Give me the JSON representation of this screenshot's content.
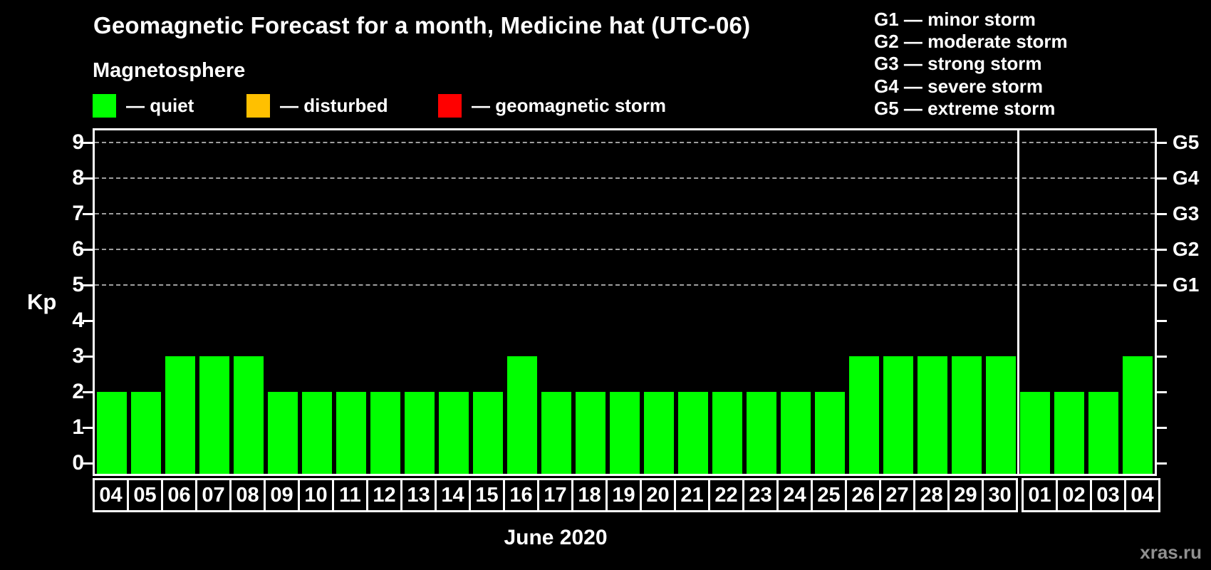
{
  "header": {
    "title": "Geomagnetic Forecast for a month, Medicine hat (UTC-06)",
    "subtitle": "Magnetosphere"
  },
  "legend": {
    "items": [
      {
        "name": "quiet",
        "label": "— quiet",
        "color": "#00ff00"
      },
      {
        "name": "disturbed",
        "label": "— disturbed",
        "color": "#ffc000"
      },
      {
        "name": "geomagnetic-storm",
        "label": "— geomagnetic storm",
        "color": "#ff0000"
      }
    ]
  },
  "storm_scale": [
    "G1 — minor storm",
    "G2 — moderate storm",
    "G3 — strong storm",
    "G4 — severe storm",
    "G5 — extreme storm"
  ],
  "axes": {
    "y_label": "Kp",
    "x_label": "June 2020",
    "kp_ticks": [
      9,
      8,
      7,
      6,
      5,
      4,
      3,
      2,
      1,
      0
    ],
    "g_labels": [
      {
        "kp": 9,
        "label": "G5"
      },
      {
        "kp": 8,
        "label": "G4"
      },
      {
        "kp": 7,
        "label": "G3"
      },
      {
        "kp": 6,
        "label": "G2"
      },
      {
        "kp": 5,
        "label": "G1"
      }
    ],
    "gridlines_at_kp": [
      9,
      8,
      7,
      6,
      5
    ]
  },
  "watermark": "xras.ru",
  "chart_data": {
    "type": "bar",
    "title": "Geomagnetic Forecast for a month, Medicine hat (UTC-06)",
    "xlabel": "June 2020",
    "ylabel": "Kp",
    "ylim": [
      0,
      9.5
    ],
    "grid": "dashed horizontal at Kp 5-9",
    "legend_position": "top",
    "categories": [
      "04",
      "05",
      "06",
      "07",
      "08",
      "09",
      "10",
      "11",
      "12",
      "13",
      "14",
      "15",
      "16",
      "17",
      "18",
      "19",
      "20",
      "21",
      "22",
      "23",
      "24",
      "25",
      "26",
      "27",
      "28",
      "29",
      "30",
      "01",
      "02",
      "03",
      "04"
    ],
    "values": [
      2,
      2,
      3,
      3,
      3,
      2,
      2,
      2,
      2,
      2,
      2,
      2,
      3,
      2,
      2,
      2,
      2,
      2,
      2,
      2,
      2,
      2,
      3,
      3,
      3,
      3,
      3,
      2,
      2,
      2,
      3
    ],
    "month_split_index": 27,
    "color_rules": {
      "quiet_max_kp": 3,
      "disturbed_max_kp": 4,
      "storm_min_kp": 5
    }
  }
}
